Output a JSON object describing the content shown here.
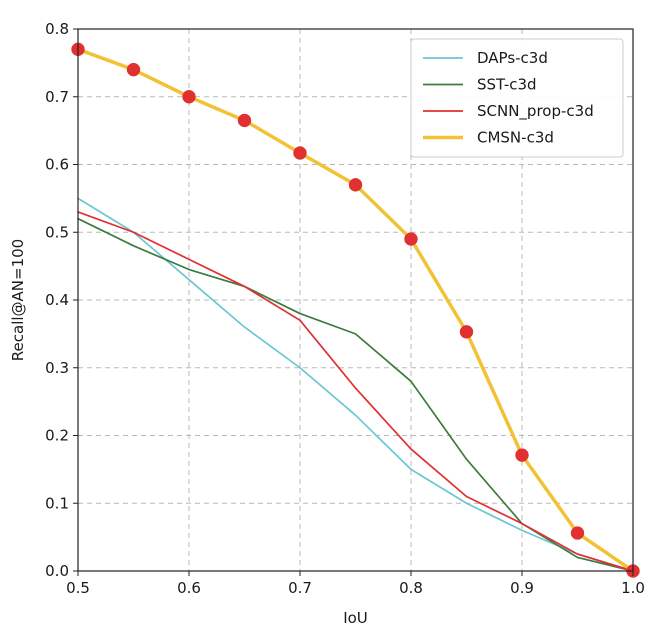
{
  "chart_data": {
    "type": "line",
    "title": "",
    "xlabel": "IoU",
    "ylabel": "Recall@AN=100",
    "xlim": [
      0.5,
      1.0
    ],
    "ylim": [
      0.0,
      0.8
    ],
    "xticks": [
      0.5,
      0.6,
      0.7,
      0.8,
      0.9,
      1.0
    ],
    "xtick_labels": [
      "0.5",
      "0.6",
      "0.7",
      "0.8",
      "0.9",
      "1.0"
    ],
    "yticks": [
      0.0,
      0.1,
      0.2,
      0.3,
      0.4,
      0.5,
      0.6,
      0.7,
      0.8
    ],
    "ytick_labels": [
      "0.0",
      "0.1",
      "0.2",
      "0.3",
      "0.4",
      "0.5",
      "0.6",
      "0.7",
      "0.8"
    ],
    "grid": true,
    "legend_position": "top-right",
    "x": [
      0.5,
      0.55,
      0.6,
      0.65,
      0.7,
      0.75,
      0.8,
      0.85,
      0.9,
      0.95,
      1.0
    ],
    "series": [
      {
        "name": "DAPs-c3d",
        "color": "#6cc7d0",
        "line_weight": "thin",
        "markers": false,
        "values": [
          0.55,
          0.5,
          0.43,
          0.36,
          0.3,
          0.23,
          0.15,
          0.1,
          0.06,
          0.025,
          0.0
        ]
      },
      {
        "name": "SST-c3d",
        "color": "#3e7b3e",
        "line_weight": "thin",
        "markers": false,
        "values": [
          0.52,
          0.48,
          0.445,
          0.42,
          0.38,
          0.35,
          0.28,
          0.165,
          0.07,
          0.02,
          0.0
        ]
      },
      {
        "name": "SCNN_prop-c3d",
        "color": "#e03030",
        "line_weight": "thin",
        "markers": false,
        "values": [
          0.53,
          0.5,
          0.46,
          0.42,
          0.37,
          0.27,
          0.18,
          0.11,
          0.07,
          0.025,
          0.0
        ]
      },
      {
        "name": "CMSN-c3d",
        "color": "#f2c235",
        "marker_color": "#e03030",
        "line_weight": "thick",
        "markers": true,
        "values": [
          0.77,
          0.74,
          0.7,
          0.665,
          0.617,
          0.57,
          0.49,
          0.353,
          0.171,
          0.056,
          0.0
        ]
      }
    ]
  }
}
